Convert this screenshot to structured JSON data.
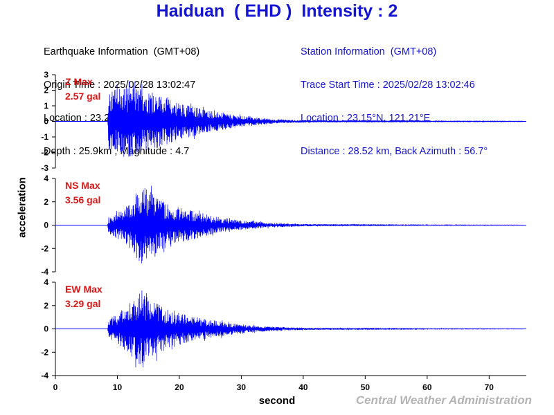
{
  "title": "Haiduan  ( EHD )  Intensity : 2",
  "earthquake_info": {
    "heading": "Earthquake Information  (GMT+08)",
    "origin_time": "Origin Time : 2025/02/28 13:02:47",
    "location": "Location : 23.29°N, 121.44°E",
    "depth_magnitude": "Depth : 25.9km , Magnitude : 4.7"
  },
  "station_info": {
    "heading": "Station Information  (GMT+08)",
    "trace_start": "Trace Start Time : 2025/02/28 13:02:46",
    "location": "Location : 23.15°N, 121.21°E",
    "distance": "Distance : 28.52 km, Back Azimuth : 56.7°"
  },
  "credit": "Central Weather Administration",
  "colors": {
    "title": "#1414d2",
    "trace": "#0000ff",
    "max_label": "#dc1414",
    "credit": "#b4b4b4"
  },
  "chart_data": {
    "type": "line",
    "xlabel": "second",
    "ylabel": "acceleration",
    "xlim": [
      0,
      76
    ],
    "xticks": [
      0,
      10,
      20,
      30,
      40,
      50,
      60,
      70
    ],
    "panels": [
      {
        "name": "Z",
        "max_label": "Z Max",
        "max_value": "2.57 gal",
        "peak": 2.57,
        "ylim": [
          -3,
          3
        ],
        "yticks": [
          -3,
          -2,
          -1,
          0,
          1,
          2,
          3
        ],
        "envelope": [
          [
            8.4,
            0
          ],
          [
            8.6,
            1.8
          ],
          [
            10,
            2.2
          ],
          [
            12,
            2.3
          ],
          [
            14,
            2.1
          ],
          [
            16,
            1.8
          ],
          [
            18,
            1.5
          ],
          [
            20,
            1.2
          ],
          [
            22,
            1.0
          ],
          [
            25,
            0.7
          ],
          [
            28,
            0.45
          ],
          [
            31,
            0.3
          ],
          [
            35,
            0.15
          ],
          [
            40,
            0.08
          ],
          [
            50,
            0.04
          ],
          [
            60,
            0.03
          ],
          [
            75.5,
            0.02
          ]
        ]
      },
      {
        "name": "NS",
        "max_label": "NS Max",
        "max_value": "3.56 gal",
        "peak": 3.56,
        "ylim": [
          -4,
          4
        ],
        "yticks": [
          -4,
          -2,
          0,
          2,
          4
        ],
        "envelope": [
          [
            8.4,
            0
          ],
          [
            8.6,
            0.6
          ],
          [
            10,
            1.2
          ],
          [
            11,
            1.4
          ],
          [
            12,
            2.0
          ],
          [
            13,
            3.0
          ],
          [
            14,
            3.4
          ],
          [
            15,
            3.0
          ],
          [
            16,
            2.6
          ],
          [
            18,
            1.9
          ],
          [
            20,
            1.5
          ],
          [
            22,
            1.3
          ],
          [
            24,
            1.0
          ],
          [
            27,
            0.6
          ],
          [
            30,
            0.4
          ],
          [
            35,
            0.2
          ],
          [
            40,
            0.1
          ],
          [
            50,
            0.05
          ],
          [
            60,
            0.03
          ],
          [
            75.5,
            0.02
          ]
        ]
      },
      {
        "name": "EW",
        "max_label": "EW Max",
        "max_value": "3.29 gal",
        "peak": 3.29,
        "ylim": [
          -4,
          4
        ],
        "yticks": [
          -4,
          -2,
          0,
          2,
          4
        ],
        "envelope": [
          [
            8.4,
            0
          ],
          [
            8.6,
            0.8
          ],
          [
            10,
            1.3
          ],
          [
            12,
            2.2
          ],
          [
            13.5,
            3.1
          ],
          [
            15,
            2.7
          ],
          [
            17,
            2.0
          ],
          [
            19,
            1.6
          ],
          [
            21,
            1.2
          ],
          [
            23,
            1.0
          ],
          [
            26,
            0.7
          ],
          [
            29,
            0.45
          ],
          [
            33,
            0.25
          ],
          [
            38,
            0.12
          ],
          [
            45,
            0.06
          ],
          [
            60,
            0.03
          ],
          [
            75.5,
            0.02
          ]
        ]
      }
    ]
  }
}
